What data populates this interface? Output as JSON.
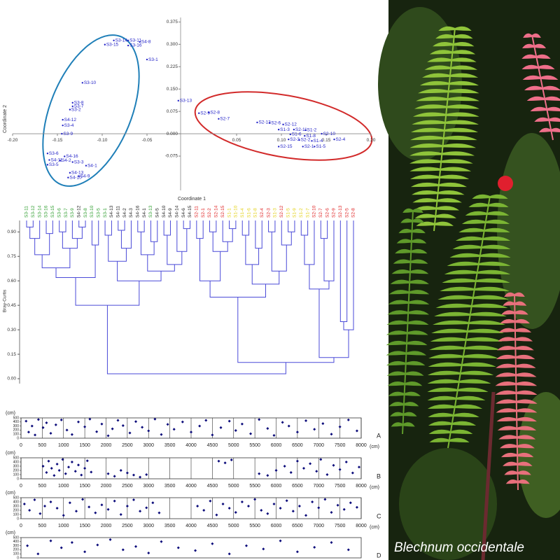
{
  "caption": "Blechnum occidentale",
  "chart_data": [
    {
      "type": "pcoa",
      "xlabel": "Coordinate 1",
      "ylabel": "Coordinate 2",
      "color": "#2323c8",
      "xlim": [
        -0.2,
        0.2
      ],
      "ylim": [
        -0.19,
        0.39
      ],
      "xticks": [
        {
          "value": -0.2,
          "label": "-0.20"
        },
        -0.15,
        {
          "value": -0.1,
          "label": "-0.10"
        },
        -0.05,
        0.05,
        {
          "value": 0.1,
          "label": "0.10"
        },
        0.15,
        {
          "value": 0.2,
          "label": "0.20"
        }
      ],
      "yticks": [
        -0.075,
        {
          "value": 0,
          "label": "0.000"
        },
        0.075,
        {
          "value": 0.15,
          "label": "0.150"
        },
        0.225,
        {
          "value": 0.3,
          "label": "0.300"
        },
        0.375
      ],
      "points": [
        {
          "label": "S3-14",
          "x": -0.087,
          "y": 0.313
        },
        {
          "label": "S3-11",
          "x": -0.071,
          "y": 0.313
        },
        {
          "label": "S3-15",
          "x": -0.097,
          "y": 0.299
        },
        {
          "label": "S3-16",
          "x": -0.071,
          "y": 0.296
        },
        {
          "label": "S4-8",
          "x": -0.058,
          "y": 0.308
        },
        {
          "label": "S3-1",
          "x": -0.05,
          "y": 0.249
        },
        {
          "label": "S3-10",
          "x": -0.122,
          "y": 0.171
        },
        {
          "label": "S3-13",
          "x": -0.015,
          "y": 0.111
        },
        {
          "label": "S3-8",
          "x": -0.133,
          "y": 0.104
        },
        {
          "label": "S3-7",
          "x": -0.133,
          "y": 0.092
        },
        {
          "label": "S3-2",
          "x": -0.136,
          "y": 0.081
        },
        {
          "label": "S4-12",
          "x": -0.144,
          "y": 0.047
        },
        {
          "label": "S3-4",
          "x": -0.144,
          "y": 0.028
        },
        {
          "label": "S3-9",
          "x": -0.145,
          "y": 0.0
        },
        {
          "label": "S3-6",
          "x": -0.161,
          "y": -0.066
        },
        {
          "label": "S4-16",
          "x": -0.142,
          "y": -0.076
        },
        {
          "label": "S3-3",
          "x": -0.133,
          "y": -0.095
        },
        {
          "label": "S4-11",
          "x": -0.159,
          "y": -0.088
        },
        {
          "label": "S4-2",
          "x": -0.147,
          "y": -0.09
        },
        {
          "label": "S3-5",
          "x": -0.161,
          "y": -0.104
        },
        {
          "label": "S4-1",
          "x": -0.118,
          "y": -0.107
        },
        {
          "label": "S4-13",
          "x": -0.136,
          "y": -0.131
        },
        {
          "label": "S4-9",
          "x": -0.126,
          "y": -0.142
        },
        {
          "label": "S4-10",
          "x": -0.138,
          "y": -0.147
        },
        {
          "label": "S2-9",
          "x": 0.008,
          "y": 0.069
        },
        {
          "label": "S2-8",
          "x": 0.019,
          "y": 0.071
        },
        {
          "label": "S2-7",
          "x": 0.03,
          "y": 0.05
        },
        {
          "label": "S2-13",
          "x": 0.073,
          "y": 0.038
        },
        {
          "label": "S2-6",
          "x": 0.087,
          "y": 0.036
        },
        {
          "label": "S2-12",
          "x": 0.102,
          "y": 0.031
        },
        {
          "label": "S1-3",
          "x": 0.097,
          "y": 0.014
        },
        {
          "label": "S2-11",
          "x": 0.114,
          "y": 0.014
        },
        {
          "label": "S1-2",
          "x": 0.127,
          "y": 0.012
        },
        {
          "label": "S1-6",
          "x": 0.11,
          "y": -0.002
        },
        {
          "label": "S2-10",
          "x": 0.145,
          "y": 0.0
        },
        {
          "label": "S1-8",
          "x": 0.126,
          "y": -0.007
        },
        {
          "label": "S2-3",
          "x": 0.108,
          "y": -0.019
        },
        {
          "label": "S2-2",
          "x": 0.12,
          "y": -0.021
        },
        {
          "label": "S1-4",
          "x": 0.134,
          "y": -0.024
        },
        {
          "label": "S2-4",
          "x": 0.159,
          "y": -0.019
        },
        {
          "label": "S2-1",
          "x": 0.124,
          "y": -0.043
        },
        {
          "label": "S1-5",
          "x": 0.137,
          "y": -0.043
        },
        {
          "label": "S2-15",
          "x": 0.097,
          "y": -0.043
        }
      ]
    },
    {
      "type": "dendrogram",
      "ylabel": "Bray-Curtis",
      "ylim": [
        -0.03,
        0.97
      ],
      "yticks": [
        {
          "value": 0,
          "label": "0.00"
        },
        0.15,
        {
          "value": 0.3,
          "label": "0.30"
        },
        0.45,
        {
          "value": 0.6,
          "label": "0.60"
        },
        0.75,
        {
          "value": 0.9,
          "label": "0.90"
        }
      ],
      "group_colors": {
        "S1": "#e3d21a",
        "S2": "#e02626",
        "S3": "#2f9e2f",
        "S4": "#222222"
      },
      "leaves": [
        "S3-11",
        "S3-12",
        "S3-14",
        "S3-16",
        "S3-15",
        "S3-6",
        "S3-7",
        "S3-9",
        "S4-12",
        "S3-8",
        "S3-10",
        "S3-5",
        "S3-1",
        "S4-13",
        "S4-11",
        "S4-2",
        "S4-3",
        "S4-16",
        "S4-1",
        "S3-13",
        "S4-5",
        "S4-10",
        "S4-9",
        "S4-14",
        "S4-6",
        "S4-15",
        "S2-11",
        "S2-1",
        "S2-2",
        "S2-14",
        "S2-15",
        "S1-1",
        "S1-10",
        "S1-4",
        "S1-6",
        "S1-8",
        "S2-4",
        "S2-3",
        "S1-3",
        "S2-12",
        "S1-5",
        "S1-9",
        "S1-2",
        "S1-7",
        "S2-10",
        "S2-7",
        "S2-6",
        "S2-9",
        "S2-13",
        "S2-5",
        "S2-8"
      ],
      "tree": [
        0.03,
        [
          0.45,
          [
            0.62,
            [
              0.68,
              [
                0.76,
                [
                  0.86,
                  [
                    0.93,
                    0,
                    1
                  ],
                  2
                ],
                [
                  0.89,
                  3,
                  4
                ]
              ],
              [
                0.8,
                [
                  0.9,
                  5,
                  6
                ],
                [
                  0.86,
                  7,
                  [
                    0.93,
                    8,
                    9
                  ]
                ]
              ]
            ],
            [
              0.82,
              10,
              11
            ]
          ],
          [
            0.6,
            [
              0.72,
              [
                0.88,
                12,
                13
              ],
              [
                0.8,
                [
                  0.91,
                  14,
                  15
                ],
                16
              ]
            ],
            [
              0.66,
              [
                0.76,
                [
                  0.9,
                  17,
                  18
                ],
                [
                  0.84,
                  19,
                  20
                ]
              ],
              [
                0.7,
                [
                  0.88,
                  21,
                  22
                ],
                [
                  0.78,
                  23,
                  [
                    0.92,
                    24,
                    25
                  ]
                ]
              ]
            ]
          ]
        ],
        [
          0.1,
          [
            0.5,
            [
              0.6,
              [
                0.86,
                26,
                27
              ],
              [
                0.78,
                [
                  0.9,
                  28,
                  29
                ],
                [
                  0.84,
                  30,
                  [
                    0.92,
                    31,
                    32
                  ]
                ]
              ]
            ],
            [
              0.58,
              [
                0.7,
                [
                  0.88,
                  33,
                  34
                ],
                [
                  0.8,
                  35,
                  36
                ]
              ],
              [
                0.66,
                [
                  0.9,
                  37,
                  38
                ],
                [
                  0.82,
                  39,
                  [
                    0.9,
                    40,
                    41
                  ]
                ]
              ]
            ]
          ],
          [
            0.13,
            [
              0.55,
              [
                0.7,
                [
                  0.88,
                  42,
                  43
                ],
                44
              ],
              [
                0.6,
                [
                  0.86,
                  45,
                  46
                ],
                47
              ]
            ],
            [
              0.3,
              [
                0.35,
                48,
                49
              ],
              50
            ]
          ]
        ]
      ]
    },
    {
      "type": "strip",
      "panel": "A",
      "xunit": "(cm)",
      "yunit": "(cm)",
      "color": "#0b0b7a",
      "xlim": [
        0,
        8000
      ],
      "ylim": [
        0,
        500
      ],
      "xticks": [
        0,
        500,
        1000,
        1500,
        2000,
        2500,
        3000,
        3500,
        4000,
        4500,
        5000,
        5500,
        6000,
        6500,
        7000,
        7500,
        8000
      ],
      "yticks": [
        0,
        100,
        200,
        300,
        400,
        500
      ],
      "x": [
        120,
        180,
        260,
        330,
        410,
        520,
        600,
        700,
        820,
        950,
        1080,
        1200,
        1350,
        1500,
        1620,
        1780,
        1900,
        2050,
        2150,
        2280,
        2400,
        2560,
        2700,
        2850,
        3000,
        3150,
        3300,
        3450,
        3600,
        3800,
        4000,
        4200,
        4350,
        4500,
        4700,
        4900,
        5050,
        5200,
        5400,
        5600,
        5800,
        5950,
        6150,
        6300,
        6500,
        6700,
        6900,
        7100,
        7300,
        7500,
        7700,
        7900
      ],
      "y": [
        420,
        150,
        300,
        80,
        460,
        260,
        380,
        120,
        330,
        450,
        200,
        90,
        400,
        280,
        470,
        160,
        350,
        60,
        230,
        440,
        310,
        130,
        410,
        270,
        180,
        470,
        90,
        340,
        220,
        400,
        150,
        300,
        440,
        80,
        260,
        420,
        190,
        350,
        110,
        460,
        240,
        70,
        390,
        300,
        150,
        430,
        220,
        360,
        100,
        280,
        450,
        180
      ]
    },
    {
      "type": "strip",
      "panel": "B",
      "xunit": "(cm)",
      "yunit": "(cm)",
      "color": "#0b0b7a",
      "xlim": [
        0,
        8000
      ],
      "ylim": [
        0,
        500
      ],
      "xticks": [
        0,
        500,
        1000,
        1500,
        2000,
        2500,
        3000,
        3500,
        4000,
        4500,
        5000,
        5500,
        6000,
        6500,
        7000,
        7500,
        8000
      ],
      "yticks": [
        0,
        100,
        200,
        300,
        400,
        500
      ],
      "x": [
        520,
        600,
        650,
        720,
        780,
        850,
        900,
        980,
        1050,
        1120,
        1200,
        1280,
        1350,
        1420,
        1500,
        1560,
        1650,
        2050,
        2200,
        2350,
        2500,
        2650,
        2800,
        2950,
        4650,
        4800,
        4950,
        5600,
        5800,
        6000,
        6200,
        6350,
        6500,
        6650,
        6800,
        6950,
        7050,
        7200,
        7350,
        7500,
        7650,
        7800,
        7950
      ],
      "y": [
        300,
        150,
        420,
        250,
        80,
        350,
        200,
        460,
        120,
        280,
        400,
        180,
        330,
        90,
        250,
        430,
        160,
        120,
        60,
        200,
        140,
        90,
        40,
        100,
        420,
        380,
        450,
        120,
        80,
        200,
        300,
        150,
        420,
        250,
        360,
        180,
        460,
        100,
        320,
        220,
        400,
        140,
        280
      ]
    },
    {
      "type": "strip",
      "panel": "C",
      "xunit": "(cm)",
      "yunit": "(cm)",
      "color": "#0b0b7a",
      "xlim": [
        0,
        8000
      ],
      "ylim": [
        0,
        500
      ],
      "xticks": [
        0,
        500,
        1000,
        1500,
        2000,
        2500,
        3000,
        3500,
        4000,
        4500,
        5000,
        5500,
        6000,
        6500,
        7000,
        7500,
        8000
      ],
      "yticks": [
        0,
        100,
        200,
        300,
        400,
        500
      ],
      "x": [
        80,
        200,
        320,
        450,
        560,
        700,
        850,
        1000,
        1150,
        1300,
        1450,
        1600,
        1750,
        1900,
        2050,
        2200,
        2350,
        2500,
        2650,
        2800,
        2950,
        3100,
        3250,
        4150,
        4300,
        4450,
        4600,
        4750,
        4900,
        5050,
        5200,
        5350,
        5500,
        5650,
        5800,
        5950,
        6100,
        6250,
        6400,
        6550,
        6700,
        6850,
        7000,
        7150,
        7300,
        7450,
        7600,
        7750,
        7900
      ],
      "y": [
        350,
        200,
        450,
        120,
        300,
        400,
        250,
        80,
        380,
        180,
        460,
        280,
        140,
        330,
        220,
        420,
        100,
        300,
        450,
        180,
        260,
        380,
        140,
        300,
        200,
        420,
        90,
        350,
        250,
        150,
        400,
        300,
        460,
        200,
        120,
        350,
        250,
        430,
        180,
        300,
        80,
        400,
        260,
        460,
        150,
        320,
        220,
        380,
        270
      ]
    },
    {
      "type": "strip",
      "panel": "D",
      "yunit": "(cm)",
      "color": "#0b0b7a",
      "xlim": [
        0,
        8000
      ],
      "ylim": [
        0,
        500
      ],
      "yticks": [
        0,
        100,
        200,
        300,
        400,
        500
      ],
      "x": [
        150,
        400,
        700,
        950,
        1200,
        1500,
        1800,
        2100,
        2400,
        2700,
        3000,
        3300,
        3700,
        4100,
        4500,
        4900,
        5300,
        5700,
        6100,
        6500,
        6900,
        7300,
        7700
      ],
      "y": [
        300,
        100,
        420,
        250,
        380,
        150,
        320,
        450,
        200,
        280,
        120,
        400,
        250,
        180,
        350,
        100,
        300,
        220,
        420,
        150,
        260,
        380,
        200
      ]
    }
  ]
}
